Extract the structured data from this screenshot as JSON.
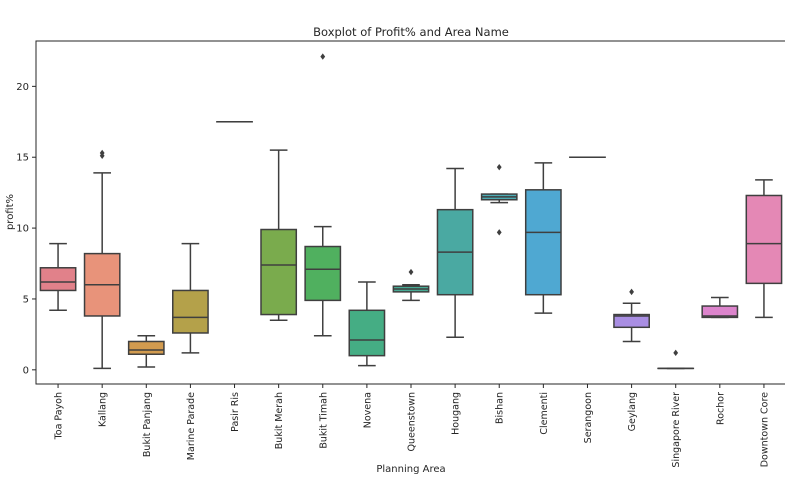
{
  "chart_data": {
    "type": "boxplot",
    "title": "Boxplot of Profit% and Area Name",
    "xlabel": "Planning Area",
    "ylabel": "profit%",
    "ylim": [
      -1,
      23.2
    ],
    "yticks": [
      0,
      5,
      10,
      15,
      20
    ],
    "grid": false,
    "categories": [
      "Toa Payoh",
      "Kallang",
      "Bukit Panjang",
      "Marine Parade",
      "Pasir Ris",
      "Bukit Merah",
      "Bukit Timah",
      "Novena",
      "Queenstown",
      "Hougang",
      "Bishan",
      "Clementi",
      "Serangoon",
      "Geylang",
      "Singapore River",
      "Rochor",
      "Downtown Core"
    ],
    "boxes": [
      {
        "color": "#e1818a",
        "whisker_low": 4.2,
        "q1": 5.6,
        "median": 6.2,
        "q3": 7.2,
        "whisker_high": 8.9,
        "outliers": []
      },
      {
        "color": "#e8937a",
        "whisker_low": 0.1,
        "q1": 3.8,
        "median": 6.0,
        "q3": 8.2,
        "whisker_high": 13.9,
        "outliers": [
          15.1,
          15.3
        ]
      },
      {
        "color": "#d29b4f",
        "whisker_low": 0.2,
        "q1": 1.1,
        "median": 1.4,
        "q3": 2.0,
        "whisker_high": 2.4,
        "outliers": []
      },
      {
        "color": "#b4a14a",
        "whisker_low": 1.2,
        "q1": 2.6,
        "median": 3.7,
        "q3": 5.6,
        "whisker_high": 8.9,
        "outliers": []
      },
      {
        "color": "#9ea84b",
        "whisker_low": 17.5,
        "q1": 17.5,
        "median": 17.5,
        "q3": 17.5,
        "whisker_high": 17.5,
        "outliers": []
      },
      {
        "color": "#7aab4d",
        "whisker_low": 3.5,
        "q1": 3.9,
        "median": 7.4,
        "q3": 9.9,
        "whisker_high": 15.5,
        "outliers": []
      },
      {
        "color": "#50b05f",
        "whisker_low": 2.4,
        "q1": 4.9,
        "median": 7.1,
        "q3": 8.7,
        "whisker_high": 10.1,
        "outliers": [
          22.1
        ]
      },
      {
        "color": "#45ad84",
        "whisker_low": 0.3,
        "q1": 1.0,
        "median": 2.1,
        "q3": 4.2,
        "whisker_high": 6.2,
        "outliers": []
      },
      {
        "color": "#48ab95",
        "whisker_low": 4.9,
        "q1": 5.5,
        "median": 5.7,
        "q3": 5.9,
        "whisker_high": 6.0,
        "outliers": [
          6.9
        ]
      },
      {
        "color": "#4aa9a2",
        "whisker_low": 2.3,
        "q1": 5.3,
        "median": 8.3,
        "q3": 11.3,
        "whisker_high": 14.2,
        "outliers": []
      },
      {
        "color": "#4cabb4",
        "whisker_low": 11.8,
        "q1": 12.0,
        "median": 12.2,
        "q3": 12.4,
        "whisker_high": 12.4,
        "outliers": [
          9.7,
          14.3
        ]
      },
      {
        "color": "#4fa8d2",
        "whisker_low": 4.0,
        "q1": 5.3,
        "median": 9.7,
        "q3": 12.7,
        "whisker_high": 14.6,
        "outliers": []
      },
      {
        "color": "#74a3e3",
        "whisker_low": 15.0,
        "q1": 15.0,
        "median": 15.0,
        "q3": 15.0,
        "whisker_high": 15.0,
        "outliers": []
      },
      {
        "color": "#a98ee3",
        "whisker_low": 2.0,
        "q1": 3.0,
        "median": 3.8,
        "q3": 3.9,
        "whisker_high": 4.7,
        "outliers": [
          5.5
        ]
      },
      {
        "color": "#cc85e0",
        "whisker_low": 0.1,
        "q1": 0.1,
        "median": 0.1,
        "q3": 0.1,
        "whisker_high": 0.1,
        "outliers": [
          1.2
        ]
      },
      {
        "color": "#dc84cc",
        "whisker_low": 3.7,
        "q1": 3.7,
        "median": 3.8,
        "q3": 4.5,
        "whisker_high": 5.1,
        "outliers": []
      },
      {
        "color": "#e488b5",
        "whisker_low": 3.7,
        "q1": 6.1,
        "median": 8.9,
        "q3": 12.3,
        "whisker_high": 13.4,
        "outliers": []
      }
    ]
  }
}
